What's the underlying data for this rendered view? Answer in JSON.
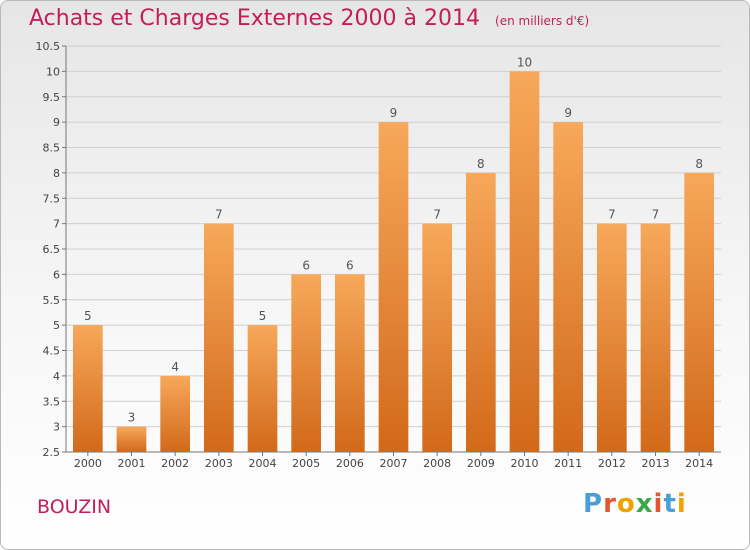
{
  "header": {
    "title": "Achats et Charges Externes 2000 à 2014",
    "unit": "(en milliers d'€)"
  },
  "commune": "BOUZIN",
  "logo": {
    "text": "Proxiti",
    "letter_colors": [
      "#4a9fd8",
      "#e4572e",
      "#f0a202",
      "#3aa845",
      "#e4572e",
      "#4a9fd8",
      "#f0a202"
    ]
  },
  "chart_data": {
    "type": "bar",
    "title": "Achats et Charges Externes 2000 à 2014",
    "xlabel": "",
    "ylabel": "",
    "categories": [
      "2000",
      "2001",
      "2002",
      "2003",
      "2004",
      "2005",
      "2006",
      "2007",
      "2008",
      "2009",
      "2010",
      "2011",
      "2012",
      "2013",
      "2014"
    ],
    "values": [
      5,
      3,
      4,
      7,
      5,
      6,
      6,
      9,
      7,
      8,
      10,
      9,
      7,
      7,
      8
    ],
    "ylim": [
      2.5,
      10.5
    ],
    "yticks": [
      "2.5",
      "3",
      "3.5",
      "4",
      "4.5",
      "5",
      "5.5",
      "6",
      "6.5",
      "7",
      "7.5",
      "8",
      "8.5",
      "9",
      "9.5",
      "10",
      "10.5"
    ],
    "grid": true,
    "bar_color_top": "#f7a85a",
    "bar_color_bottom": "#d2691a"
  }
}
